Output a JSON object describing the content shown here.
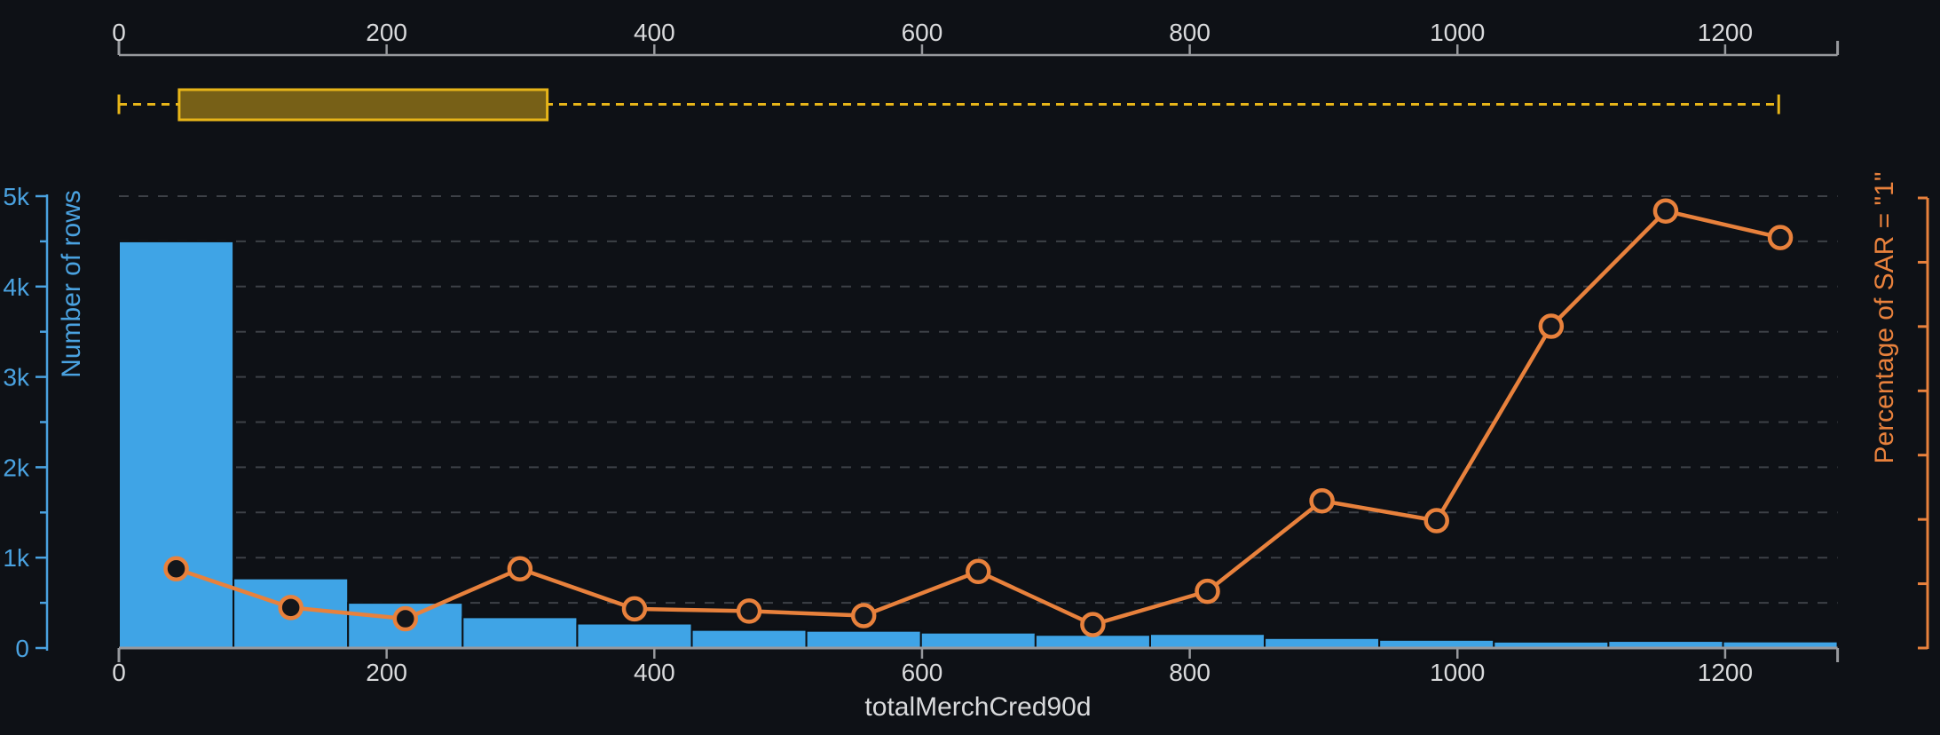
{
  "chart_data": {
    "type": "histogram_with_line",
    "title": "",
    "xlabel": "totalMerchCred90d",
    "left_axis": {
      "label": "Number of rows",
      "domain": [
        0,
        5000
      ],
      "major_tick_labels": [
        "0",
        "1k",
        "2k",
        "3k",
        "4k",
        "5k"
      ],
      "major_tick_values": [
        0,
        1000,
        2000,
        3000,
        4000,
        5000
      ],
      "minor_tick_values": [
        500,
        1500,
        2500,
        3500,
        4500
      ],
      "gridlines": "dashed horizontal every 500"
    },
    "right_axis": {
      "label": "Percentage of SAR = \"1\"",
      "labels_visible": false,
      "tick_count": 8
    },
    "x_axis": {
      "domain": [
        0,
        1284
      ],
      "tick_values": [
        0,
        200,
        400,
        600,
        800,
        1000,
        1200
      ]
    },
    "context_axis": {
      "domain": [
        0,
        1284
      ],
      "tick_values": [
        0,
        200,
        400,
        600,
        800,
        1000,
        1200
      ]
    },
    "bin_count": 15,
    "bin_width": 85.6,
    "counts": [
      4500,
      770,
      500,
      340,
      270,
      200,
      190,
      170,
      145,
      155,
      110,
      90,
      70,
      78,
      72
    ],
    "sar_line_fraction_of_axis": [
      0.176,
      0.09,
      0.065,
      0.176,
      0.087,
      0.082,
      0.072,
      0.17,
      0.052,
      0.126,
      0.327,
      0.283,
      0.715,
      0.971,
      0.912
    ],
    "legend": "none"
  },
  "brush": {
    "selection": [
      45,
      320
    ],
    "track_range": [
      0,
      1240
    ]
  },
  "colors": {
    "background": "#0e1116",
    "bar_fill": "#3fa4e6",
    "bar_border": "#0d1014",
    "line_orange": "#e8813c",
    "marker_fill": "#13161b",
    "axis_blue": "#4aa2e0",
    "axis_orange": "#e8813c",
    "axis_gray": "#97999d",
    "label_gray": "#d9dadc",
    "grid_gray": "#3d4147",
    "brush_border": "#e7b519",
    "brush_fill": "#776017"
  }
}
